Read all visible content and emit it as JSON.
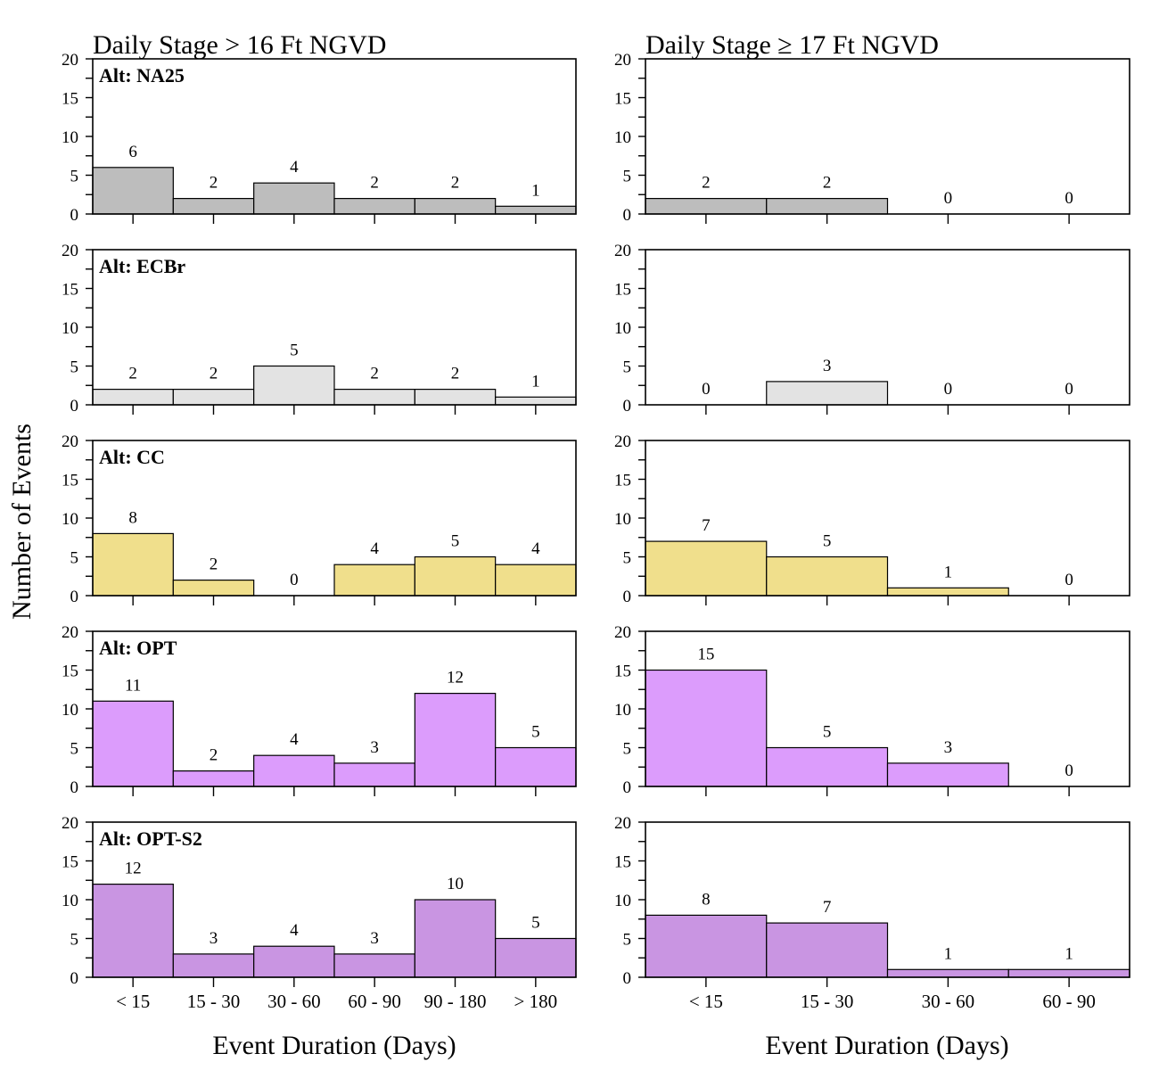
{
  "ylabel": "Number of Events",
  "columns": [
    {
      "title": "Daily Stage > 16 Ft NGVD",
      "xlabel": "Event Duration (Days)"
    },
    {
      "title": "Daily Stage ≥ 17 Ft NGVD",
      "xlabel": "Event Duration (Days)"
    }
  ],
  "chart_data": {
    "type": "bar",
    "ylim": [
      0,
      20
    ],
    "yticks": [
      0,
      5,
      10,
      15,
      20
    ],
    "ylabel": "Number of Events",
    "panels_left": {
      "title": "Daily Stage > 16 Ft NGVD",
      "xlabel": "Event Duration (Days)",
      "categories": [
        "< 15",
        "15 - 30",
        "30 - 60",
        "60 - 90",
        "90 - 180",
        "> 180"
      ],
      "series": [
        {
          "name": "Alt: NA25",
          "color": "#bdbdbd",
          "values": [
            6,
            2,
            4,
            2,
            2,
            1
          ]
        },
        {
          "name": "Alt: ECBr",
          "color": "#e3e3e3",
          "values": [
            2,
            2,
            5,
            2,
            2,
            1
          ]
        },
        {
          "name": "Alt: CC",
          "color": "#f0df8c",
          "values": [
            8,
            2,
            0,
            4,
            5,
            4
          ]
        },
        {
          "name": "Alt: OPT",
          "color": "#dc9cfc",
          "values": [
            11,
            2,
            4,
            3,
            12,
            5
          ]
        },
        {
          "name": "Alt: OPT-S2",
          "color": "#c995e2",
          "values": [
            12,
            3,
            4,
            3,
            10,
            5
          ]
        }
      ]
    },
    "panels_right": {
      "title": "Daily Stage ≥ 17 Ft NGVD",
      "xlabel": "Event Duration (Days)",
      "categories": [
        "< 15",
        "15 - 30",
        "30 - 60",
        "60 - 90"
      ],
      "series": [
        {
          "name": "Alt: NA25",
          "color": "#bdbdbd",
          "values": [
            2,
            2,
            0,
            0
          ]
        },
        {
          "name": "Alt: ECBr",
          "color": "#e3e3e3",
          "values": [
            0,
            3,
            0,
            0
          ]
        },
        {
          "name": "Alt: CC",
          "color": "#f0df8c",
          "values": [
            7,
            5,
            1,
            0
          ]
        },
        {
          "name": "Alt: OPT",
          "color": "#dc9cfc",
          "values": [
            15,
            5,
            3,
            0
          ]
        },
        {
          "name": "Alt: OPT-S2",
          "color": "#c995e2",
          "values": [
            8,
            7,
            1,
            1
          ]
        }
      ]
    }
  }
}
